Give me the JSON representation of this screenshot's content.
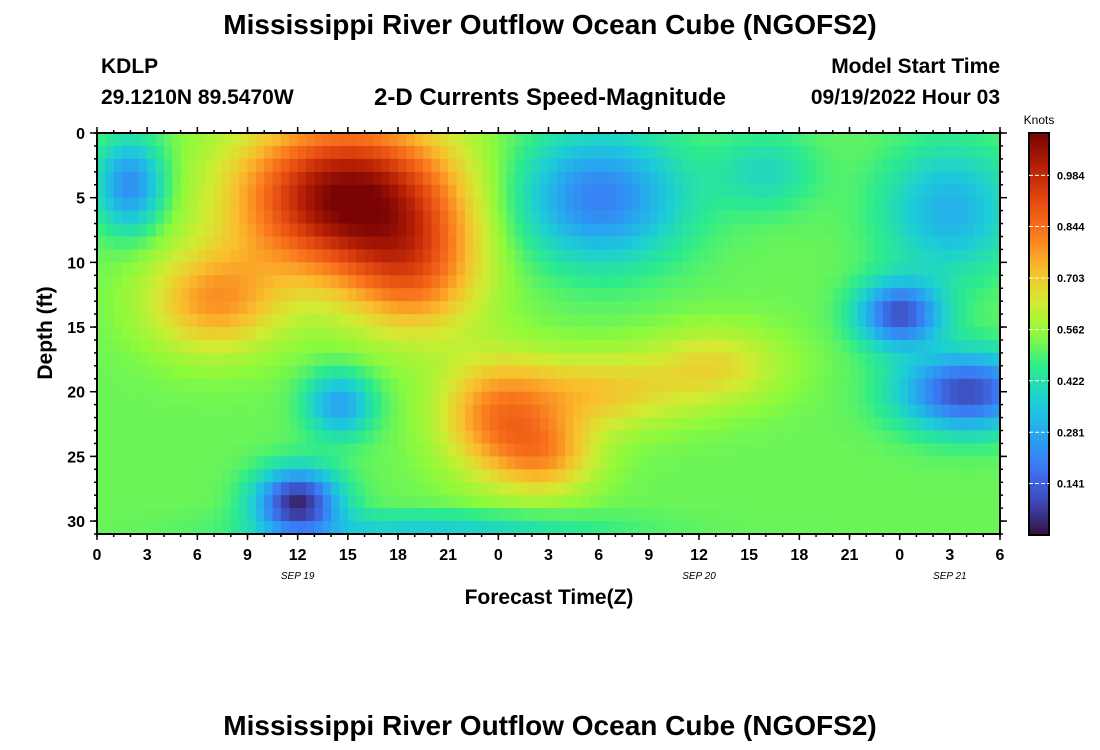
{
  "header": {
    "title": "Mississippi River Outflow Ocean Cube (NGOFS2)",
    "station": "KDLP",
    "coords": "29.1210N  89.5470W",
    "plot_title": "2-D Currents Speed-Magnitude",
    "start_label": "Model Start Time",
    "start_value": "09/19/2022 Hour 03"
  },
  "footer": {
    "title": "Mississippi River Outflow Ocean Cube (NGOFS2)"
  },
  "chart_data": {
    "type": "heatmap",
    "title": "2-D Currents Speed-Magnitude",
    "xlabel": "Forecast Time(Z)",
    "ylabel": "Depth (ft)",
    "xlim": [
      0,
      54
    ],
    "ylim": [
      0,
      31
    ],
    "x_ticks": [
      0,
      3,
      6,
      9,
      12,
      15,
      18,
      21,
      24,
      27,
      30,
      33,
      36,
      39,
      42,
      45,
      48,
      51,
      54
    ],
    "x_tick_labels": [
      "0",
      "3",
      "6",
      "9",
      "12",
      "15",
      "18",
      "21",
      "0",
      "3",
      "6",
      "9",
      "12",
      "15",
      "18",
      "21",
      "0",
      "3",
      "6"
    ],
    "y_ticks": [
      0,
      5,
      10,
      15,
      20,
      25,
      30
    ],
    "y_tick_labels": [
      "0",
      "5",
      "10",
      "15",
      "20",
      "25",
      "30"
    ],
    "date_labels": [
      {
        "x": 12,
        "text": "SEP 19"
      },
      {
        "x": 36,
        "text": "SEP 20"
      },
      {
        "x": 51,
        "text": "SEP 21"
      }
    ],
    "colorbar": {
      "label": "Knots",
      "min": 0.0,
      "max": 1.1,
      "ticks": [
        0.141,
        0.281,
        0.422,
        0.562,
        0.703,
        0.844,
        0.984
      ],
      "tick_labels": [
        "0.141",
        "0.281",
        "0.422",
        "0.562",
        "0.703",
        "0.844",
        "0.984"
      ]
    },
    "speed_field_components": {
      "baseline": 0.52,
      "features": [
        {
          "x": 15,
          "y": 5,
          "sx": 6.5,
          "sy": 6,
          "amp": 0.58
        },
        {
          "x": 7,
          "y": 13,
          "sx": 4,
          "sy": 4,
          "amp": 0.25
        },
        {
          "x": 19,
          "y": 11,
          "sx": 4,
          "sy": 5,
          "amp": 0.25
        },
        {
          "x": 24,
          "y": 22,
          "sx": 3.5,
          "sy": 4.5,
          "amp": 0.28
        },
        {
          "x": 27,
          "y": 25,
          "sx": 3,
          "sy": 3,
          "amp": 0.2
        },
        {
          "x": 30,
          "y": 20,
          "sx": 5,
          "sy": 3,
          "amp": 0.18
        },
        {
          "x": 37,
          "y": 18,
          "sx": 4,
          "sy": 3,
          "amp": 0.15
        },
        {
          "x": 2,
          "y": 4,
          "sx": 2,
          "sy": 3.5,
          "amp": -0.3
        },
        {
          "x": 12,
          "y": 28.5,
          "sx": 2.5,
          "sy": 2.5,
          "amp": -0.48
        },
        {
          "x": 14.5,
          "y": 21,
          "sx": 2,
          "sy": 2.5,
          "amp": -0.25
        },
        {
          "x": 30,
          "y": 5,
          "sx": 5,
          "sy": 5,
          "amp": -0.32
        },
        {
          "x": 48,
          "y": 14,
          "sx": 2.5,
          "sy": 2.5,
          "amp": -0.4
        },
        {
          "x": 52,
          "y": 20,
          "sx": 4,
          "sy": 3,
          "amp": -0.42
        },
        {
          "x": 51,
          "y": 6,
          "sx": 4,
          "sy": 5,
          "amp": -0.22
        },
        {
          "x": 40,
          "y": 3,
          "sx": 3,
          "sy": 3,
          "amp": -0.12
        },
        {
          "x": 20,
          "y": 30.5,
          "sx": 10,
          "sy": 1.2,
          "amp": -0.15
        }
      ]
    }
  }
}
